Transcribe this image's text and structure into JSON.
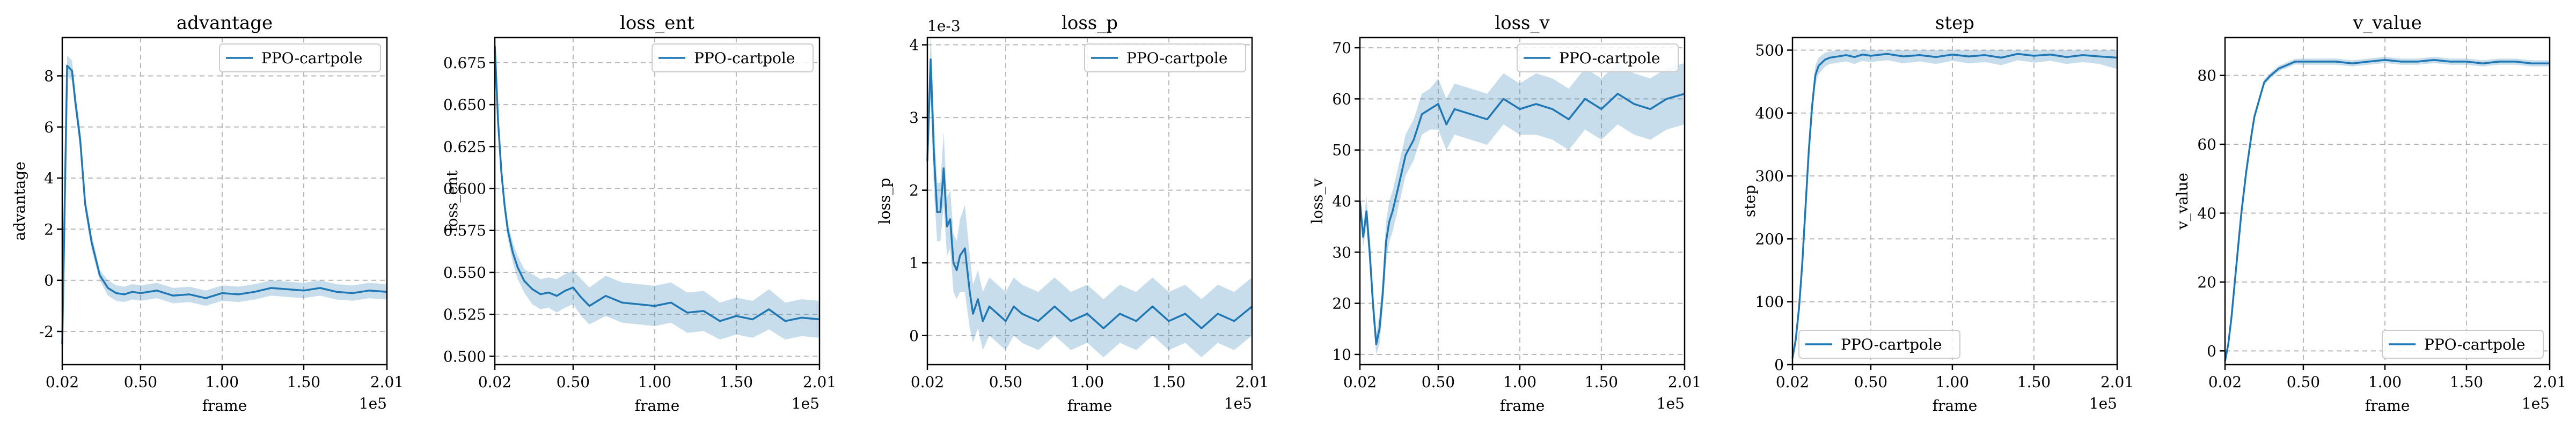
{
  "colors": {
    "series": "#1f77b4",
    "band": "#1f77b4",
    "grid": "#b8b8b8"
  },
  "chart_data": [
    {
      "type": "line",
      "title": "advantage",
      "xlabel": "frame",
      "ylabel": "advantage",
      "x_multiplier": "1e5",
      "y_multiplier": "",
      "xlim": [
        0.02,
        2.01
      ],
      "ylim": [
        -3.3,
        9.5
      ],
      "xticks": [
        0.02,
        0.5,
        1.0,
        1.5,
        2.01
      ],
      "xtick_labels": [
        "0.02",
        "0.50",
        "1.00",
        "1.50",
        "2.01"
      ],
      "yticks": [
        -2,
        0,
        2,
        4,
        6,
        8
      ],
      "ytick_labels": [
        "-2",
        "0",
        "2",
        "4",
        "6",
        "8"
      ],
      "legend": "top-right",
      "grid": true,
      "series": [
        {
          "name": "PPO-cartpole",
          "x": [
            0.02,
            0.05,
            0.08,
            0.1,
            0.13,
            0.16,
            0.2,
            0.25,
            0.3,
            0.35,
            0.4,
            0.45,
            0.5,
            0.6,
            0.7,
            0.8,
            0.9,
            1.0,
            1.1,
            1.2,
            1.3,
            1.4,
            1.5,
            1.6,
            1.7,
            1.8,
            1.9,
            2.01
          ],
          "y": [
            -2.5,
            8.4,
            8.2,
            7.0,
            5.5,
            3.0,
            1.5,
            0.2,
            -0.3,
            -0.5,
            -0.55,
            -0.45,
            -0.5,
            -0.4,
            -0.6,
            -0.55,
            -0.7,
            -0.5,
            -0.55,
            -0.45,
            -0.3,
            -0.35,
            -0.4,
            -0.3,
            -0.45,
            -0.5,
            -0.4,
            -0.45
          ],
          "lower": [
            -2.6,
            8.0,
            7.8,
            6.6,
            5.1,
            2.7,
            1.2,
            0.0,
            -0.6,
            -0.8,
            -0.85,
            -0.75,
            -0.8,
            -0.7,
            -0.9,
            -0.85,
            -1.0,
            -0.8,
            -0.85,
            -0.75,
            -0.6,
            -0.65,
            -0.7,
            -0.6,
            -0.75,
            -0.8,
            -0.7,
            -0.75
          ],
          "upper": [
            -2.4,
            8.8,
            8.6,
            7.4,
            5.9,
            3.3,
            1.8,
            0.4,
            0.0,
            -0.2,
            -0.25,
            -0.15,
            -0.2,
            -0.1,
            -0.3,
            -0.25,
            -0.4,
            -0.2,
            -0.25,
            -0.15,
            0.0,
            -0.05,
            -0.1,
            0.0,
            -0.15,
            -0.2,
            -0.1,
            -0.15
          ]
        }
      ]
    },
    {
      "type": "line",
      "title": "loss_ent",
      "xlabel": "frame",
      "ylabel": "loss_ent",
      "x_multiplier": "1e5",
      "y_multiplier": "",
      "xlim": [
        0.02,
        2.01
      ],
      "ylim": [
        0.495,
        0.69
      ],
      "xticks": [
        0.02,
        0.5,
        1.0,
        1.5,
        2.01
      ],
      "xtick_labels": [
        "0.02",
        "0.50",
        "1.00",
        "1.50",
        "2.01"
      ],
      "yticks": [
        0.5,
        0.525,
        0.55,
        0.575,
        0.6,
        0.625,
        0.65,
        0.675
      ],
      "ytick_labels": [
        "0.500",
        "0.525",
        "0.550",
        "0.575",
        "0.600",
        "0.625",
        "0.650",
        "0.675"
      ],
      "legend": "top-right",
      "grid": true,
      "series": [
        {
          "name": "PPO-cartpole",
          "x": [
            0.02,
            0.04,
            0.06,
            0.08,
            0.1,
            0.13,
            0.16,
            0.2,
            0.25,
            0.3,
            0.35,
            0.4,
            0.45,
            0.5,
            0.55,
            0.6,
            0.7,
            0.8,
            0.9,
            1.0,
            1.1,
            1.2,
            1.3,
            1.4,
            1.5,
            1.6,
            1.7,
            1.8,
            1.9,
            2.01
          ],
          "y": [
            0.685,
            0.64,
            0.61,
            0.59,
            0.575,
            0.562,
            0.553,
            0.545,
            0.54,
            0.537,
            0.538,
            0.536,
            0.539,
            0.541,
            0.535,
            0.53,
            0.536,
            0.532,
            0.531,
            0.53,
            0.532,
            0.526,
            0.527,
            0.521,
            0.524,
            0.522,
            0.528,
            0.521,
            0.523,
            0.522
          ],
          "lower": [
            0.683,
            0.635,
            0.605,
            0.585,
            0.57,
            0.556,
            0.546,
            0.538,
            0.531,
            0.528,
            0.529,
            0.526,
            0.529,
            0.531,
            0.524,
            0.519,
            0.524,
            0.52,
            0.519,
            0.518,
            0.52,
            0.514,
            0.515,
            0.51,
            0.513,
            0.511,
            0.516,
            0.51,
            0.512,
            0.511
          ],
          "upper": [
            0.687,
            0.645,
            0.615,
            0.595,
            0.58,
            0.568,
            0.56,
            0.552,
            0.549,
            0.546,
            0.547,
            0.546,
            0.549,
            0.551,
            0.546,
            0.541,
            0.548,
            0.544,
            0.543,
            0.542,
            0.544,
            0.538,
            0.539,
            0.532,
            0.535,
            0.533,
            0.54,
            0.532,
            0.534,
            0.533
          ]
        }
      ]
    },
    {
      "type": "line",
      "title": "loss_p",
      "xlabel": "frame",
      "ylabel": "loss_p",
      "x_multiplier": "1e5",
      "y_multiplier": "1e-3",
      "xlim": [
        0.02,
        2.01
      ],
      "ylim": [
        -0.0004,
        0.0041
      ],
      "xticks": [
        0.02,
        0.5,
        1.0,
        1.5,
        2.01
      ],
      "xtick_labels": [
        "0.02",
        "0.50",
        "1.00",
        "1.50",
        "2.01"
      ],
      "yticks": [
        0,
        0.001,
        0.002,
        0.003,
        0.004
      ],
      "ytick_labels": [
        "0",
        "1",
        "2",
        "3",
        "4"
      ],
      "legend": "top-right",
      "grid": true,
      "series": [
        {
          "name": "PPO-cartpole",
          "x": [
            0.02,
            0.04,
            0.06,
            0.08,
            0.1,
            0.12,
            0.14,
            0.16,
            0.18,
            0.2,
            0.22,
            0.25,
            0.28,
            0.3,
            0.33,
            0.36,
            0.4,
            0.45,
            0.5,
            0.55,
            0.6,
            0.7,
            0.8,
            0.9,
            1.0,
            1.1,
            1.2,
            1.3,
            1.4,
            1.5,
            1.6,
            1.7,
            1.8,
            1.9,
            2.01
          ],
          "y": [
            0.0024,
            0.0038,
            0.0025,
            0.0017,
            0.0017,
            0.0023,
            0.0015,
            0.0016,
            0.001,
            0.0009,
            0.0011,
            0.0012,
            0.0006,
            0.0003,
            0.0005,
            0.0002,
            0.0004,
            0.0003,
            0.0002,
            0.0004,
            0.0003,
            0.0002,
            0.0004,
            0.0002,
            0.0003,
            0.0001,
            0.0003,
            0.0002,
            0.0004,
            0.0002,
            0.0003,
            0.0001,
            0.0003,
            0.0002,
            0.0004
          ],
          "lower": [
            0.0022,
            0.0033,
            0.002,
            0.0013,
            0.0013,
            0.0018,
            0.0011,
            0.0012,
            0.0006,
            0.0005,
            0.0006,
            0.0006,
            0.0001,
            -0.0001,
            0.0001,
            -0.0002,
            0.0,
            -0.0001,
            -0.0002,
            0.0,
            -0.0001,
            -0.0002,
            0.0,
            -0.0002,
            -0.0001,
            -0.0003,
            -0.0001,
            -0.0002,
            0.0,
            -0.0002,
            -0.0001,
            -0.0003,
            -0.0001,
            -0.0002,
            0.0
          ],
          "upper": [
            0.0026,
            0.0042,
            0.003,
            0.0021,
            0.0021,
            0.0028,
            0.0019,
            0.002,
            0.0014,
            0.0013,
            0.0016,
            0.0018,
            0.0011,
            0.0007,
            0.0009,
            0.0006,
            0.0008,
            0.0007,
            0.0006,
            0.0008,
            0.0007,
            0.0006,
            0.0008,
            0.0006,
            0.0007,
            0.0005,
            0.0007,
            0.0006,
            0.0008,
            0.0006,
            0.0007,
            0.0005,
            0.0007,
            0.0006,
            0.0008
          ]
        }
      ]
    },
    {
      "type": "line",
      "title": "loss_v",
      "xlabel": "frame",
      "ylabel": "loss_v",
      "x_multiplier": "1e5",
      "y_multiplier": "",
      "xlim": [
        0.02,
        2.01
      ],
      "ylim": [
        8,
        72
      ],
      "xticks": [
        0.02,
        0.5,
        1.0,
        1.5,
        2.01
      ],
      "xtick_labels": [
        "0.02",
        "0.50",
        "1.00",
        "1.50",
        "2.01"
      ],
      "yticks": [
        10,
        20,
        30,
        40,
        50,
        60,
        70
      ],
      "ytick_labels": [
        "10",
        "20",
        "30",
        "40",
        "50",
        "60",
        "70"
      ],
      "legend": "top-right",
      "grid": true,
      "series": [
        {
          "name": "PPO-cartpole",
          "x": [
            0.02,
            0.04,
            0.06,
            0.08,
            0.1,
            0.12,
            0.14,
            0.16,
            0.18,
            0.2,
            0.22,
            0.25,
            0.3,
            0.35,
            0.4,
            0.45,
            0.5,
            0.55,
            0.6,
            0.7,
            0.8,
            0.9,
            1.0,
            1.1,
            1.2,
            1.3,
            1.4,
            1.5,
            1.6,
            1.7,
            1.8,
            1.9,
            2.01
          ],
          "y": [
            40,
            33,
            38,
            30,
            20,
            12,
            15,
            22,
            32,
            36,
            38,
            42,
            49,
            52,
            57,
            58,
            59,
            55,
            58,
            57,
            56,
            60,
            58,
            59,
            58,
            56,
            60,
            58,
            61,
            59,
            58,
            60,
            61
          ],
          "lower": [
            38,
            31,
            35,
            27,
            17,
            10,
            12,
            19,
            28,
            32,
            34,
            38,
            45,
            48,
            53,
            54,
            54,
            50,
            53,
            52,
            51,
            55,
            53,
            53,
            52,
            50,
            54,
            52,
            55,
            53,
            52,
            54,
            55
          ],
          "upper": [
            42,
            35,
            41,
            33,
            23,
            14,
            18,
            25,
            36,
            40,
            42,
            46,
            53,
            56,
            61,
            62,
            64,
            60,
            63,
            62,
            61,
            65,
            63,
            65,
            64,
            62,
            66,
            64,
            67,
            65,
            64,
            66,
            67
          ]
        }
      ]
    },
    {
      "type": "line",
      "title": "step",
      "xlabel": "frame",
      "ylabel": "step",
      "x_multiplier": "1e5",
      "y_multiplier": "",
      "xlim": [
        0.02,
        2.01
      ],
      "ylim": [
        0,
        520
      ],
      "xticks": [
        0.02,
        0.5,
        1.0,
        1.5,
        2.01
      ],
      "xtick_labels": [
        "0.02",
        "0.50",
        "1.00",
        "1.50",
        "2.01"
      ],
      "yticks": [
        0,
        100,
        200,
        300,
        400,
        500
      ],
      "ytick_labels": [
        "0",
        "100",
        "200",
        "300",
        "400",
        "500"
      ],
      "legend": "lower-left",
      "grid": true,
      "series": [
        {
          "name": "PPO-cartpole",
          "x": [
            0.02,
            0.04,
            0.06,
            0.08,
            0.1,
            0.12,
            0.14,
            0.16,
            0.18,
            0.2,
            0.22,
            0.25,
            0.3,
            0.35,
            0.4,
            0.45,
            0.5,
            0.6,
            0.7,
            0.8,
            0.9,
            1.0,
            1.1,
            1.2,
            1.3,
            1.4,
            1.5,
            1.6,
            1.7,
            1.8,
            1.9,
            2.01
          ],
          "y": [
            10,
            40,
            90,
            160,
            250,
            340,
            410,
            460,
            475,
            480,
            485,
            488,
            490,
            492,
            489,
            493,
            491,
            494,
            490,
            492,
            489,
            493,
            490,
            492,
            488,
            494,
            491,
            493,
            489,
            492,
            490,
            488
          ],
          "lower": [
            8,
            35,
            82,
            150,
            238,
            326,
            395,
            445,
            462,
            468,
            474,
            478,
            480,
            482,
            478,
            483,
            481,
            484,
            479,
            482,
            478,
            483,
            479,
            481,
            476,
            484,
            480,
            483,
            478,
            481,
            478,
            470
          ],
          "upper": [
            12,
            45,
            98,
            170,
            262,
            354,
            425,
            475,
            488,
            492,
            496,
            498,
            500,
            500,
            500,
            500,
            500,
            500,
            500,
            500,
            500,
            500,
            500,
            500,
            500,
            500,
            500,
            500,
            500,
            500,
            500,
            500
          ]
        }
      ]
    },
    {
      "type": "line",
      "title": "v_value",
      "xlabel": "frame",
      "ylabel": "v_value",
      "x_multiplier": "1e5",
      "y_multiplier": "",
      "xlim": [
        0.02,
        2.01
      ],
      "ylim": [
        -4,
        91
      ],
      "xticks": [
        0.02,
        0.5,
        1.0,
        1.5,
        2.01
      ],
      "xtick_labels": [
        "0.02",
        "0.50",
        "1.00",
        "1.50",
        "2.01"
      ],
      "yticks": [
        0,
        20,
        40,
        60,
        80
      ],
      "ytick_labels": [
        "0",
        "20",
        "40",
        "60",
        "80"
      ],
      "legend": "lower-right",
      "grid": true,
      "series": [
        {
          "name": "PPO-cartpole",
          "x": [
            0.02,
            0.04,
            0.06,
            0.08,
            0.1,
            0.12,
            0.15,
            0.18,
            0.2,
            0.23,
            0.26,
            0.3,
            0.35,
            0.4,
            0.45,
            0.5,
            0.6,
            0.7,
            0.8,
            0.9,
            1.0,
            1.1,
            1.2,
            1.3,
            1.4,
            1.5,
            1.6,
            1.7,
            1.8,
            1.9,
            2.01
          ],
          "y": [
            -3,
            2,
            10,
            20,
            30,
            40,
            52,
            62,
            68,
            73,
            78,
            80,
            82,
            83,
            84,
            84,
            84,
            84,
            83.5,
            84,
            84.5,
            84,
            84,
            84.5,
            84,
            84,
            83.5,
            84,
            84,
            83.5,
            83.5
          ],
          "lower": [
            -3.5,
            1.5,
            9.5,
            19.5,
            29.5,
            39.5,
            51.5,
            61.3,
            67.3,
            72.2,
            77.2,
            79.2,
            81.2,
            82.2,
            83.2,
            83.1,
            83.1,
            83.1,
            82.6,
            83.1,
            83.6,
            83.1,
            83.1,
            83.6,
            83.1,
            83.1,
            82.6,
            83.1,
            83.1,
            82.6,
            82.6
          ],
          "upper": [
            -2.5,
            2.5,
            10.5,
            20.5,
            30.5,
            40.5,
            52.5,
            62.7,
            68.7,
            73.8,
            78.8,
            80.8,
            82.8,
            83.8,
            84.8,
            84.9,
            84.9,
            84.9,
            84.4,
            84.9,
            85.4,
            84.9,
            84.9,
            85.4,
            84.9,
            84.9,
            84.4,
            84.9,
            84.9,
            84.4,
            84.4
          ]
        }
      ]
    }
  ]
}
